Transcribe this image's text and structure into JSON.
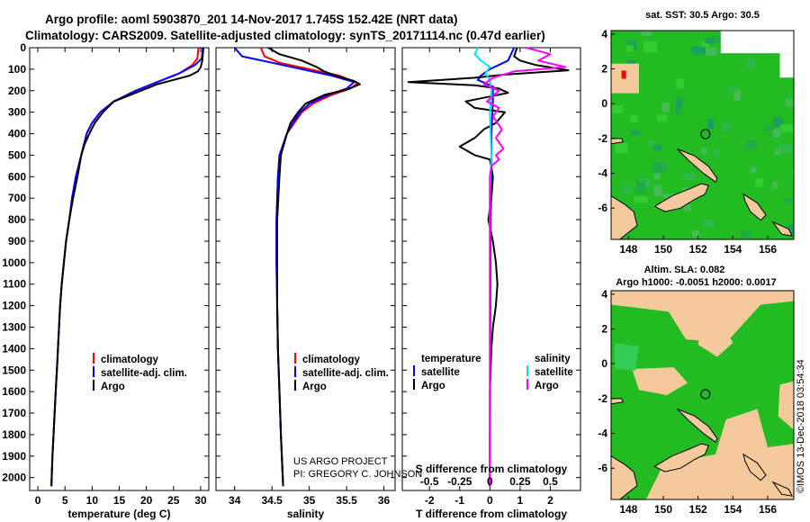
{
  "title": {
    "line1": "Argo profile: aoml 5903870_201 14-Nov-2017 1.745S 152.42E (NRT data)",
    "line2": "Climatology: CARS2009. Satellite-adjusted climatology: synTS_20171114.nc (0.47d earlier)"
  },
  "credits": {
    "project": "US ARGO PROJECT",
    "pi": "PI: GREGORY C. JOHNSON",
    "imos": "©IMOS 13-Dec-2018 03:54:34"
  },
  "colors": {
    "climatology": "#ff0000",
    "satellite": "#0000ff",
    "argo": "#000000",
    "sat_salinity": "#00e5ee",
    "argo_salinity": "#ff00ff",
    "land": "#f4c99b",
    "ocean": "#22bb22",
    "ocean_dark": "#119944"
  },
  "legend": {
    "climatology": "climatology",
    "satellite_adj": "satellite-adj. clim.",
    "argo": "Argo",
    "temperature": "temperature",
    "salinity": "salinity",
    "satellite": "satellite"
  },
  "chart_data": [
    {
      "type": "line",
      "name": "temperature",
      "xlabel": "temperature (deg C)",
      "ylabel": "",
      "xlim": [
        -1.5,
        31.5
      ],
      "ylim": [
        0,
        2060
      ],
      "y_inverted": true,
      "xticks": [
        0,
        5,
        10,
        15,
        20,
        25,
        30
      ],
      "yticks": [
        0,
        100,
        200,
        300,
        400,
        500,
        600,
        700,
        800,
        900,
        1000,
        1100,
        1200,
        1300,
        1400,
        1500,
        1600,
        1700,
        1800,
        1900,
        2000
      ],
      "series": [
        {
          "name": "climatology",
          "color": "#ff0000",
          "points": [
            [
              29.6,
              0
            ],
            [
              29.4,
              50
            ],
            [
              28.5,
              80
            ],
            [
              26,
              120
            ],
            [
              22,
              160
            ],
            [
              18,
              200
            ],
            [
              14,
              250
            ],
            [
              11.5,
              300
            ],
            [
              10,
              350
            ],
            [
              9,
              400
            ],
            [
              8,
              500
            ],
            [
              7,
              600
            ],
            [
              6.3,
              700
            ],
            [
              5.8,
              800
            ],
            [
              5.2,
              900
            ],
            [
              4.8,
              1000
            ],
            [
              4.4,
              1100
            ],
            [
              4.1,
              1200
            ],
            [
              3.9,
              1300
            ],
            [
              3.7,
              1400
            ],
            [
              3.5,
              1500
            ],
            [
              3.3,
              1600
            ],
            [
              3.1,
              1700
            ],
            [
              2.9,
              1800
            ],
            [
              2.7,
              1900
            ],
            [
              2.5,
              2040
            ]
          ]
        },
        {
          "name": "satellite-adj. clim.",
          "color": "#0000ff",
          "points": [
            [
              30.4,
              0
            ],
            [
              30.2,
              50
            ],
            [
              29,
              80
            ],
            [
              26,
              120
            ],
            [
              22,
              160
            ],
            [
              18,
              200
            ],
            [
              14,
              250
            ],
            [
              11.5,
              300
            ],
            [
              10,
              350
            ],
            [
              9,
              400
            ],
            [
              8,
              500
            ],
            [
              7,
              600
            ],
            [
              6.3,
              700
            ],
            [
              5.8,
              800
            ],
            [
              5.2,
              900
            ],
            [
              4.8,
              1000
            ],
            [
              4.4,
              1100
            ],
            [
              4.1,
              1200
            ],
            [
              3.9,
              1300
            ],
            [
              3.7,
              1400
            ],
            [
              3.5,
              1500
            ],
            [
              3.3,
              1600
            ],
            [
              3.1,
              1700
            ],
            [
              2.9,
              1800
            ],
            [
              2.7,
              1900
            ],
            [
              2.5,
              2040
            ]
          ]
        },
        {
          "name": "Argo",
          "color": "#000000",
          "points": [
            [
              30.5,
              0
            ],
            [
              30.3,
              60
            ],
            [
              30,
              90
            ],
            [
              29.5,
              110
            ],
            [
              28,
              130
            ],
            [
              25,
              150
            ],
            [
              22,
              170
            ],
            [
              18,
              210
            ],
            [
              14,
              250
            ],
            [
              12,
              300
            ],
            [
              10.5,
              350
            ],
            [
              9.5,
              400
            ],
            [
              8.6,
              450
            ],
            [
              8,
              500
            ],
            [
              7.3,
              600
            ],
            [
              6.5,
              700
            ],
            [
              5.8,
              800
            ],
            [
              5.2,
              900
            ],
            [
              4.8,
              1000
            ],
            [
              4.4,
              1100
            ],
            [
              4.1,
              1200
            ],
            [
              3.9,
              1300
            ],
            [
              3.7,
              1400
            ],
            [
              3.5,
              1500
            ],
            [
              3.3,
              1600
            ],
            [
              3.1,
              1700
            ],
            [
              2.9,
              1800
            ],
            [
              2.7,
              1900
            ],
            [
              2.5,
              2040
            ]
          ]
        }
      ]
    },
    {
      "type": "line",
      "name": "salinity",
      "xlabel": "salinity",
      "xlim": [
        33.75,
        36.15
      ],
      "ylim": [
        0,
        2060
      ],
      "y_inverted": true,
      "xticks": [
        34,
        34.5,
        35,
        35.5,
        36
      ],
      "series": [
        {
          "name": "climatology",
          "color": "#ff0000",
          "points": [
            [
              34.35,
              0
            ],
            [
              34.4,
              40
            ],
            [
              34.6,
              70
            ],
            [
              35,
              100
            ],
            [
              35.4,
              130
            ],
            [
              35.65,
              165
            ],
            [
              35.55,
              190
            ],
            [
              35.3,
              220
            ],
            [
              35.05,
              260
            ],
            [
              34.9,
              300
            ],
            [
              34.8,
              350
            ],
            [
              34.7,
              400
            ],
            [
              34.6,
              500
            ],
            [
              34.58,
              600
            ],
            [
              34.56,
              800
            ],
            [
              34.56,
              1000
            ],
            [
              34.57,
              1200
            ],
            [
              34.58,
              1400
            ],
            [
              34.6,
              1600
            ],
            [
              34.62,
              1800
            ],
            [
              34.65,
              2040
            ]
          ]
        },
        {
          "name": "satellite-adj. clim.",
          "color": "#0000ff",
          "points": [
            [
              34.0,
              0
            ],
            [
              34.1,
              40
            ],
            [
              34.5,
              70
            ],
            [
              34.9,
              100
            ],
            [
              35.3,
              130
            ],
            [
              35.6,
              160
            ],
            [
              35.5,
              190
            ],
            [
              35.25,
              220
            ],
            [
              35.0,
              260
            ],
            [
              34.88,
              300
            ],
            [
              34.78,
              350
            ],
            [
              34.7,
              400
            ],
            [
              34.6,
              500
            ],
            [
              34.58,
              600
            ],
            [
              34.56,
              800
            ],
            [
              34.56,
              1000
            ],
            [
              34.57,
              1200
            ],
            [
              34.58,
              1400
            ],
            [
              34.6,
              1600
            ],
            [
              34.62,
              1800
            ],
            [
              34.65,
              2040
            ]
          ]
        },
        {
          "name": "Argo",
          "color": "#000000",
          "points": [
            [
              34.45,
              0
            ],
            [
              34.6,
              30
            ],
            [
              34.9,
              60
            ],
            [
              35.1,
              90
            ],
            [
              35.2,
              110
            ],
            [
              35.35,
              130
            ],
            [
              35.6,
              155
            ],
            [
              35.68,
              170
            ],
            [
              35.5,
              195
            ],
            [
              35.2,
              220
            ],
            [
              34.95,
              260
            ],
            [
              34.85,
              300
            ],
            [
              34.75,
              350
            ],
            [
              34.7,
              400
            ],
            [
              34.62,
              500
            ],
            [
              34.6,
              600
            ],
            [
              34.57,
              800
            ],
            [
              34.57,
              1000
            ],
            [
              34.57,
              1200
            ],
            [
              34.58,
              1400
            ],
            [
              34.6,
              1600
            ],
            [
              34.62,
              1800
            ],
            [
              34.65,
              2040
            ]
          ]
        }
      ]
    },
    {
      "type": "line",
      "name": "differences",
      "xlabel": "T difference from climatology",
      "top_label": "S difference from climatology",
      "xlim": [
        -2.9,
        3.0
      ],
      "ylim": [
        0,
        2060
      ],
      "y_inverted": true,
      "xticks": [
        -2,
        -1,
        0,
        1,
        2
      ],
      "xtick_labels": [
        "-2",
        "-1",
        "0",
        "1",
        "2"
      ],
      "s_xticks": [
        -0.5,
        -0.25,
        0,
        0.25,
        0.5
      ],
      "s_xtick_labels": [
        "-0.5",
        "-0.25",
        "0",
        "0.25",
        "0.5"
      ],
      "s_scale_per_T": 0.25,
      "series": [
        {
          "name": "temperature satellite",
          "color": "#0000ff",
          "points": [
            [
              0.8,
              0
            ],
            [
              0.6,
              60
            ],
            [
              0,
              100
            ],
            [
              -0.3,
              130
            ],
            [
              -0.4,
              150
            ],
            [
              0.1,
              180
            ],
            [
              0.1,
              250
            ],
            [
              0.05,
              400
            ],
            [
              0.05,
              600
            ],
            [
              0.03,
              800
            ],
            [
              0.02,
              1000
            ],
            [
              0.01,
              1500
            ],
            [
              0,
              2040
            ]
          ]
        },
        {
          "name": "temperature Argo",
          "color": "#000000",
          "points": [
            [
              0.9,
              0
            ],
            [
              0.8,
              40
            ],
            [
              1.0,
              60
            ],
            [
              1.5,
              80
            ],
            [
              2.6,
              105
            ],
            [
              0.5,
              125
            ],
            [
              -0.5,
              140
            ],
            [
              -2.7,
              160
            ],
            [
              -0.5,
              175
            ],
            [
              0.3,
              190
            ],
            [
              0.6,
              210
            ],
            [
              -0.8,
              250
            ],
            [
              -0.5,
              280
            ],
            [
              0.5,
              300
            ],
            [
              0.2,
              350
            ],
            [
              -0.2,
              380
            ],
            [
              -0.5,
              420
            ],
            [
              -1.0,
              460
            ],
            [
              -0.5,
              500
            ],
            [
              0,
              520
            ],
            [
              0.1,
              600
            ],
            [
              0.05,
              700
            ],
            [
              -0.05,
              800
            ],
            [
              0.1,
              900
            ],
            [
              0.2,
              1000
            ],
            [
              0.25,
              1100
            ],
            [
              0.2,
              1200
            ],
            [
              0.1,
              1300
            ],
            [
              0.05,
              1400
            ],
            [
              0,
              1600
            ],
            [
              0,
              2040
            ]
          ]
        },
        {
          "name": "salinity satellite",
          "color": "#00e5ee",
          "points": [
            [
              -0.4,
              0
            ],
            [
              -0.5,
              30
            ],
            [
              -0.3,
              60
            ],
            [
              0,
              90
            ],
            [
              -0.15,
              120
            ],
            [
              0,
              150
            ],
            [
              0.05,
              200
            ],
            [
              0,
              300
            ],
            [
              0.05,
              500
            ],
            [
              0,
              700
            ],
            [
              0,
              1000
            ],
            [
              0,
              1500
            ],
            [
              0,
              2040
            ]
          ]
        },
        {
          "name": "salinity Argo",
          "color": "#ff00ff",
          "points": [
            [
              1.2,
              0
            ],
            [
              2.0,
              30
            ],
            [
              1.6,
              60
            ],
            [
              2.5,
              90
            ],
            [
              0.8,
              110
            ],
            [
              0.1,
              140
            ],
            [
              -0.2,
              170
            ],
            [
              0.3,
              200
            ],
            [
              -0.1,
              250
            ],
            [
              0.3,
              280
            ],
            [
              0.1,
              320
            ],
            [
              0.4,
              380
            ],
            [
              0.2,
              420
            ],
            [
              0.45,
              470
            ],
            [
              0.2,
              500
            ],
            [
              0.3,
              520
            ],
            [
              0.05,
              550
            ],
            [
              0,
              600
            ],
            [
              0,
              800
            ],
            [
              0,
              1000
            ],
            [
              0,
              1500
            ],
            [
              0,
              2040
            ]
          ]
        }
      ]
    },
    {
      "type": "heatmap",
      "name": "map-sst",
      "title": "sat. SST: 30.5 Argo: 30.5",
      "xlim": [
        147,
        157.5
      ],
      "ylim": [
        -7.8,
        4.2
      ],
      "xticks": [
        148,
        150,
        152,
        154,
        156
      ],
      "yticks": [
        -6,
        -4,
        -2,
        0,
        2,
        4
      ],
      "marker": [
        152.42,
        -1.745
      ]
    },
    {
      "type": "heatmap",
      "name": "map-sla",
      "title": "Altim. SLA: 0.082",
      "subtitle": "Argo h1000: -0.0051 h2000: 0.0017",
      "xlim": [
        147,
        157.5
      ],
      "ylim": [
        -7.8,
        4.2
      ],
      "xticks": [
        148,
        150,
        152,
        154,
        156
      ],
      "yticks": [
        -6,
        -4,
        -2,
        0,
        2,
        4
      ],
      "marker": [
        152.42,
        -1.745
      ]
    }
  ]
}
